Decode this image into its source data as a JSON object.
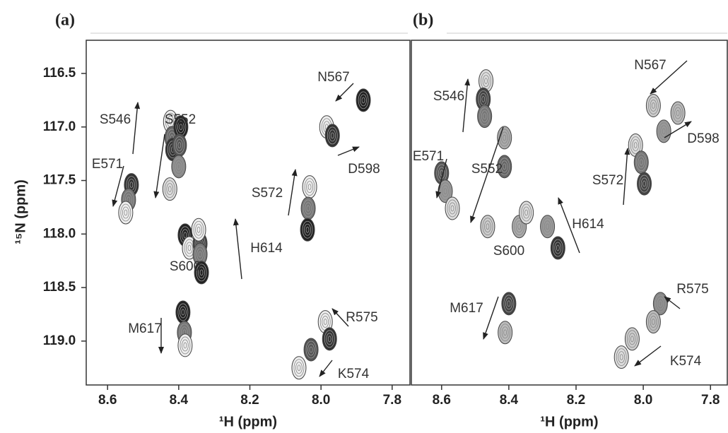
{
  "chart_data": [
    {
      "type": "scatter",
      "panel_label": "(a)",
      "x_label": "¹H (ppm)",
      "y_label": "¹⁵N (ppm)",
      "xlim": [
        8.66,
        7.75
      ],
      "ylim": [
        116.19,
        119.41
      ],
      "xticks": [
        8.6,
        8.4,
        8.2,
        {
          "value": 8,
          "label": "8.0"
        },
        7.8
      ],
      "yticks": [
        116.5,
        {
          "value": 117,
          "label": "117.0"
        },
        117.5,
        {
          "value": 118,
          "label": "118.0"
        },
        118.5,
        {
          "value": 119,
          "label": "119.0"
        }
      ],
      "x": [
        8.423,
        8.419,
        8.417,
        8.394,
        8.398,
        8.4,
        8.425,
        8.533,
        8.541,
        8.549,
        8.382,
        8.37,
        8.34,
        8.344,
        8.34,
        8.336,
        8.388,
        8.384,
        8.382,
        8.032,
        8.036,
        8.038,
        7.984,
        7.968,
        7.881,
        7.988,
        7.976,
        8.028,
        8.062
      ],
      "values": [
        116.95,
        117.1,
        117.21,
        117.0,
        117.17,
        117.37,
        117.58,
        117.54,
        117.68,
        117.8,
        118.01,
        118.13,
        118.09,
        117.96,
        118.19,
        118.36,
        118.73,
        118.92,
        119.04,
        117.56,
        117.76,
        117.96,
        117.0,
        117.08,
        116.75,
        118.82,
        118.98,
        119.08,
        119.25
      ],
      "colors": [
        "#eeeeee",
        "#666666",
        "#333333",
        "#222222",
        "#555555",
        "#888888",
        "#dddddd",
        "#333333",
        "#777777",
        "#eeeeee",
        "#222222",
        "#eeeeee",
        "#444444",
        "#eeeeee",
        "#777777",
        "#222222",
        "#222222",
        "#777777",
        "#eeeeee",
        "#eeeeee",
        "#777777",
        "#222222",
        "#eeeeee",
        "#333333",
        "#222222",
        "#eeeeee",
        "#333333",
        "#555555",
        "#eeeeee"
      ],
      "annotations": [
        "S546",
        "S552",
        "E571",
        "S600",
        "H614",
        "M617",
        "S572",
        "N567",
        "D598",
        "R575",
        "K574"
      ]
    },
    {
      "type": "scatter",
      "panel_label": "(b)",
      "x_label": "¹H (ppm)",
      "xlim": [
        8.69,
        7.75
      ],
      "ylim": [
        116.19,
        119.41
      ],
      "xticks": [
        8.6,
        8.4,
        8.2,
        {
          "value": 8,
          "label": "8.0"
        },
        7.8
      ],
      "x": [
        8.468,
        8.476,
        8.472,
        8.413,
        8.413,
        8.6,
        8.589,
        8.568,
        8.463,
        8.369,
        8.348,
        8.285,
        8.254,
        8.4,
        8.411,
        7.939,
        7.897,
        7.97,
        8.023,
        8.006,
        7.997,
        7.949,
        7.97,
        8.033,
        8.065
      ],
      "values": [
        116.57,
        116.74,
        116.9,
        117.1,
        117.37,
        117.43,
        117.6,
        117.76,
        117.93,
        117.93,
        117.8,
        117.93,
        118.13,
        118.65,
        118.92,
        117.04,
        116.87,
        116.8,
        117.17,
        117.33,
        117.53,
        118.65,
        118.82,
        118.98,
        119.15
      ],
      "colors": [
        "#dddddd",
        "#444444",
        "#777777",
        "#aaaaaa",
        "#666666",
        "#555555",
        "#999999",
        "#dddddd",
        "#cccccc",
        "#aaaaaa",
        "#dddddd",
        "#999999",
        "#333333",
        "#444444",
        "#bbbbbb",
        "#999999",
        "#bbbbbb",
        "#cccccc",
        "#dddddd",
        "#777777",
        "#444444",
        "#888888",
        "#bbbbbb",
        "#cccccc",
        "#dddddd"
      ],
      "annotations": [
        "S546",
        "E571",
        "S552",
        "S600",
        "H614",
        "M617",
        "S572",
        "N567",
        "D598",
        "R575",
        "K574"
      ]
    }
  ]
}
